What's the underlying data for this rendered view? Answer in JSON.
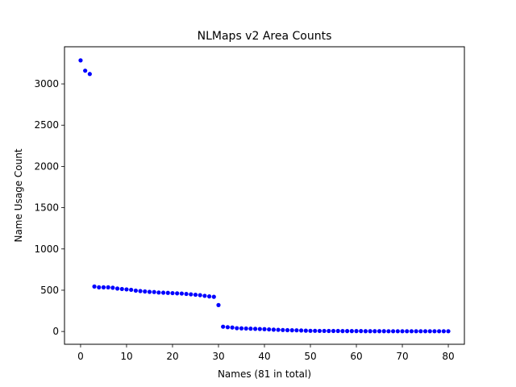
{
  "chart_data": {
    "type": "scatter",
    "title": "NLMaps v2 Area Counts",
    "xlabel": "Names (81 in total)",
    "ylabel": "Name Usage Count",
    "xlim": [
      -3.5,
      83.5
    ],
    "ylim": [
      -155,
      3450
    ],
    "x_ticks": [
      0,
      10,
      20,
      30,
      40,
      50,
      60,
      70,
      80
    ],
    "y_ticks": [
      0,
      500,
      1000,
      1500,
      2000,
      2500,
      3000
    ],
    "grid": false,
    "legend": "none",
    "marker_color": "#0000ff",
    "series": [
      {
        "x": [
          0,
          1,
          2,
          3,
          4,
          5,
          6,
          7,
          8,
          9,
          10,
          11,
          12,
          13,
          14,
          15,
          16,
          17,
          18,
          19,
          20,
          21,
          22,
          23,
          24,
          25,
          26,
          27,
          28,
          29,
          30,
          31,
          32,
          33,
          34,
          35,
          36,
          37,
          38,
          39,
          40,
          41,
          42,
          43,
          44,
          45,
          46,
          47,
          48,
          49,
          50,
          51,
          52,
          53,
          54,
          55,
          56,
          57,
          58,
          59,
          60,
          61,
          62,
          63,
          64,
          65,
          66,
          67,
          68,
          69,
          70,
          71,
          72,
          73,
          74,
          75,
          76,
          77,
          78,
          79,
          80
        ],
        "values": [
          3285,
          3160,
          3120,
          545,
          535,
          535,
          535,
          530,
          520,
          515,
          510,
          505,
          495,
          490,
          485,
          480,
          478,
          472,
          470,
          468,
          465,
          462,
          460,
          455,
          450,
          445,
          440,
          432,
          425,
          420,
          320,
          58,
          52,
          48,
          40,
          38,
          36,
          34,
          32,
          30,
          28,
          25,
          22,
          20,
          18,
          16,
          15,
          14,
          12,
          10,
          8,
          8,
          7,
          7,
          6,
          6,
          6,
          5,
          5,
          5,
          5,
          5,
          4,
          4,
          4,
          4,
          4,
          3,
          3,
          3,
          3,
          3,
          3,
          3,
          3,
          3,
          3,
          3,
          3,
          3,
          3
        ]
      }
    ]
  }
}
